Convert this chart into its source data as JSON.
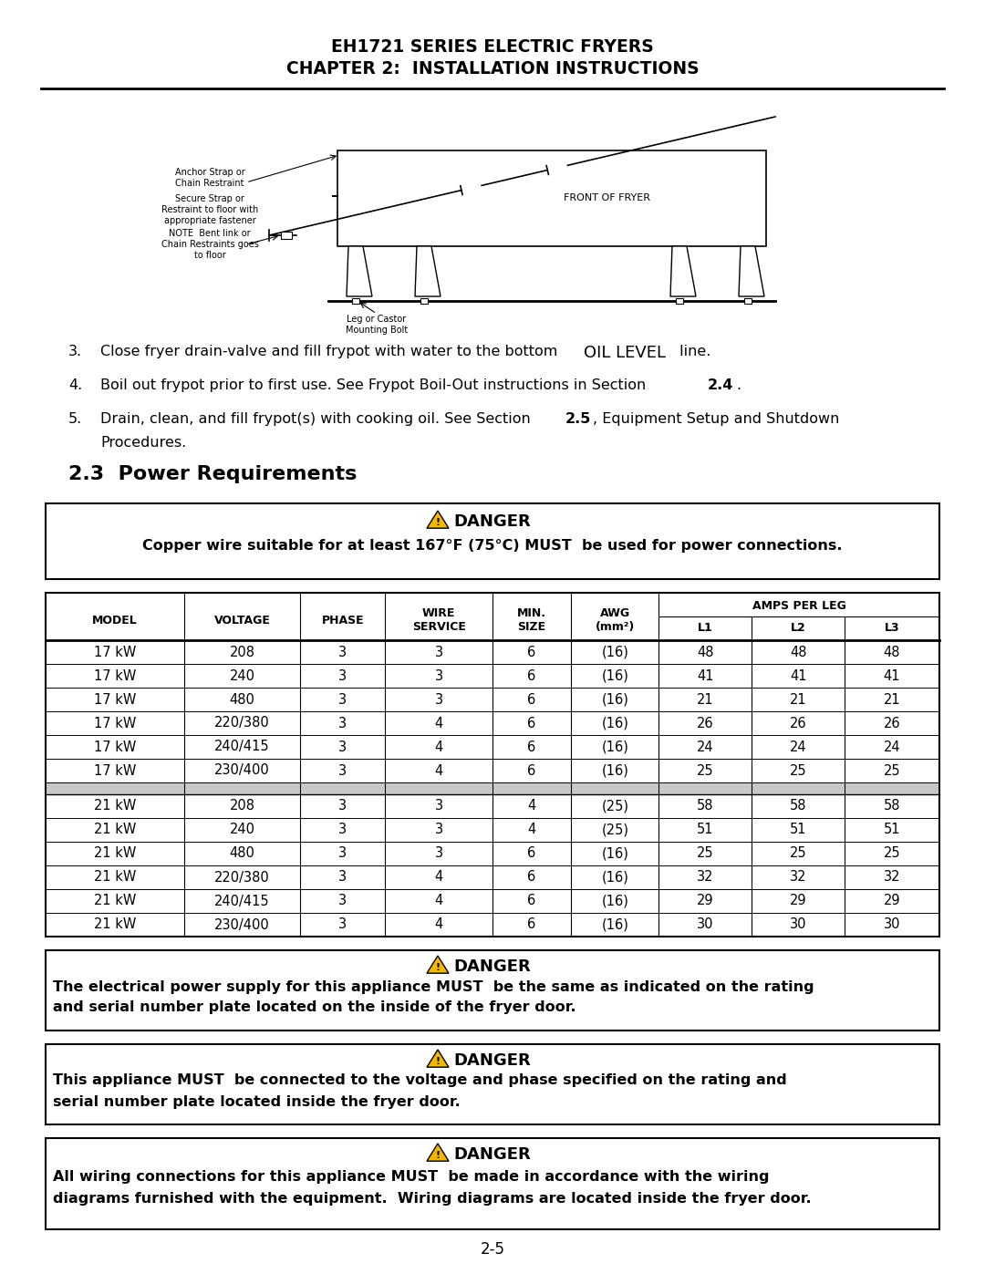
{
  "title_line1": "EH1721 SERIES ELECTRIC FRYERS",
  "title_line2": "CHAPTER 2:  INSTALLATION INSTRUCTIONS",
  "section_title": "2.3  Power Requirements",
  "danger1_title": "DANGER",
  "danger1_text": "Copper wire suitable for at least 167°F (75°C) MUST  be used for power connections.",
  "table_data": [
    [
      "17 kW",
      "208",
      "3",
      "3",
      "6",
      "(16)",
      "48",
      "48",
      "48"
    ],
    [
      "17 kW",
      "240",
      "3",
      "3",
      "6",
      "(16)",
      "41",
      "41",
      "41"
    ],
    [
      "17 kW",
      "480",
      "3",
      "3",
      "6",
      "(16)",
      "21",
      "21",
      "21"
    ],
    [
      "17 kW",
      "220/380",
      "3",
      "4",
      "6",
      "(16)",
      "26",
      "26",
      "26"
    ],
    [
      "17 kW",
      "240/415",
      "3",
      "4",
      "6",
      "(16)",
      "24",
      "24",
      "24"
    ],
    [
      "17 kW",
      "230/400",
      "3",
      "4",
      "6",
      "(16)",
      "25",
      "25",
      "25"
    ],
    [
      "SEP",
      "",
      "",
      "",
      "",
      "",
      "",
      "",
      ""
    ],
    [
      "21 kW",
      "208",
      "3",
      "3",
      "4",
      "(25)",
      "58",
      "58",
      "58"
    ],
    [
      "21 kW",
      "240",
      "3",
      "3",
      "4",
      "(25)",
      "51",
      "51",
      "51"
    ],
    [
      "21 kW",
      "480",
      "3",
      "3",
      "6",
      "(16)",
      "25",
      "25",
      "25"
    ],
    [
      "21 kW",
      "220/380",
      "3",
      "4",
      "6",
      "(16)",
      "32",
      "32",
      "32"
    ],
    [
      "21 kW",
      "240/415",
      "3",
      "4",
      "6",
      "(16)",
      "29",
      "29",
      "29"
    ],
    [
      "21 kW",
      "230/400",
      "3",
      "4",
      "6",
      "(16)",
      "30",
      "30",
      "30"
    ]
  ],
  "danger2_text1": "The electrical power supply for this appliance MUST  be the same as indicated on the rating",
  "danger2_text2": "and serial number plate located on the inside of the fryer door.",
  "danger3_text1": "This appliance MUST  be connected to the voltage and phase specified on the rating and",
  "danger3_text2": "serial number plate located inside the fryer door.",
  "danger4_text1": "All wiring connections for this appliance MUST  be made in accordance with the wiring",
  "danger4_text2": "diagrams furnished with the equipment.  Wiring diagrams are located inside the fryer door.",
  "page_number": "2-5",
  "background_color": "#ffffff",
  "text_color": "#000000",
  "gray_row_color": "#c8c8c8"
}
